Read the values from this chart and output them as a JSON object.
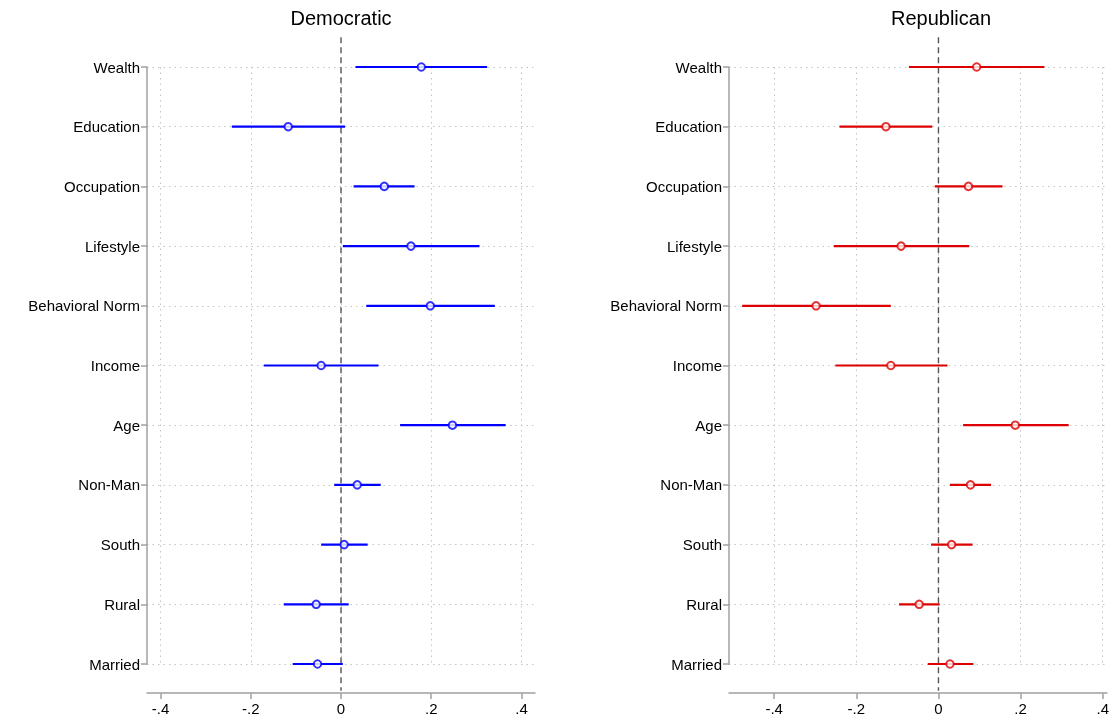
{
  "chart_data": [
    {
      "type": "scatter",
      "title": "Democratic",
      "orientation": "horizontal",
      "categories": [
        "Wealth",
        "Education",
        "Occupation",
        "Lifestyle",
        "Behavioral Norm",
        "Income",
        "Age",
        "Non-Man",
        "South",
        "Rural",
        "Married"
      ],
      "values": [
        0.178,
        -0.117,
        0.096,
        0.155,
        0.198,
        -0.044,
        0.247,
        0.036,
        0.007,
        -0.055,
        -0.052
      ],
      "errors": [
        [
          0.032,
          0.324
        ],
        [
          -0.242,
          0.009
        ],
        [
          0.028,
          0.163
        ],
        [
          0.004,
          0.307
        ],
        [
          0.056,
          0.341
        ],
        [
          -0.171,
          0.083
        ],
        [
          0.131,
          0.365
        ],
        [
          -0.015,
          0.088
        ],
        [
          -0.044,
          0.059
        ],
        [
          -0.127,
          0.017
        ],
        [
          -0.107,
          0.004
        ]
      ],
      "color": "#0000ff",
      "marker": "circle",
      "xlim": [
        -0.43,
        0.43
      ],
      "xticks": [
        {
          "value": -0.4,
          "label": "-.4"
        },
        {
          "value": -0.2,
          "label": "-.2"
        },
        0,
        {
          "value": 0.2,
          "label": ".2"
        },
        {
          "value": 0.4,
          "label": ".4"
        }
      ],
      "grid": true,
      "ref_lines": [
        {
          "axis": "x",
          "value": 0,
          "line_style": "dashed",
          "color": "#555555"
        }
      ]
    },
    {
      "type": "scatter",
      "title": "Republican",
      "orientation": "horizontal",
      "categories": [
        "Wealth",
        "Education",
        "Occupation",
        "Lifestyle",
        "Behavioral Norm",
        "Income",
        "Age",
        "Non-Man",
        "South",
        "Rural",
        "Married"
      ],
      "values": [
        0.093,
        -0.128,
        0.073,
        -0.091,
        -0.298,
        -0.116,
        0.187,
        0.078,
        0.032,
        -0.047,
        0.028
      ],
      "errors": [
        [
          -0.072,
          0.258
        ],
        [
          -0.241,
          -0.015
        ],
        [
          -0.009,
          0.156
        ],
        [
          -0.255,
          0.075
        ],
        [
          -0.478,
          -0.116
        ],
        [
          -0.251,
          0.022
        ],
        [
          0.06,
          0.317
        ],
        [
          0.028,
          0.128
        ],
        [
          -0.018,
          0.083
        ],
        [
          -0.096,
          0.003
        ],
        [
          -0.026,
          0.085
        ]
      ],
      "color": "#dd0000",
      "marker": "circle",
      "xlim": [
        -0.51,
        0.41
      ],
      "xticks": [
        {
          "value": -0.4,
          "label": "-.4"
        },
        {
          "value": -0.2,
          "label": "-.2"
        },
        0,
        {
          "value": 0.2,
          "label": ".2"
        },
        {
          "value": 0.4,
          "label": ".4"
        }
      ],
      "grid": true,
      "ref_lines": [
        {
          "axis": "x",
          "value": 0,
          "line_style": "dashed",
          "color": "#555555"
        }
      ]
    }
  ]
}
